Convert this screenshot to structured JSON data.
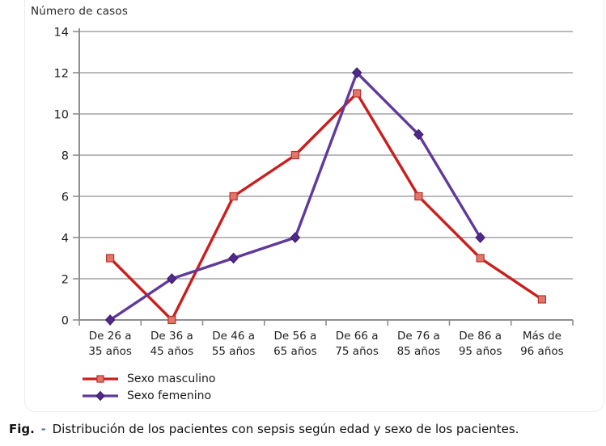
{
  "figure": {
    "caption": {
      "prefix": "Fig.",
      "dash": "-",
      "text": "Distribución de los pacientes con sepsis según edad y sexo de los pacientes.",
      "dash_color": "#5b7ca3"
    }
  },
  "chart_data": {
    "type": "line",
    "title": "Número de casos",
    "ylabel": "Número de casos",
    "categories": [
      "De 26 a\n35 años",
      "De 36 a\n45 años",
      "De 46 a\n55 años",
      "De 56 a\n65 años",
      "De 66 a\n75 años",
      "De 76 a\n85 años",
      "De 86 a\n95 años",
      "Más de\n96 años"
    ],
    "series": [
      {
        "name": "Sexo masculino",
        "values": [
          3,
          0,
          6,
          8,
          11,
          6,
          3,
          1
        ],
        "color": "#cb1d1d",
        "marker": "square",
        "marker_fill": "#e2766b",
        "marker_stroke": "#b93228"
      },
      {
        "name": "Sexo femenino",
        "values": [
          0,
          2,
          3,
          4,
          12,
          9,
          4,
          null
        ],
        "color": "#5f3a9c",
        "marker": "diamond",
        "marker_fill": "#53288c",
        "marker_stroke": "#3e1d6b"
      }
    ],
    "ylim": [
      0,
      14
    ],
    "ytick_step": 2,
    "grid": true,
    "grid_color": "#a3a3a3",
    "axis_color": "#8e8e8e",
    "tick_label_color": "#1f1f1f",
    "legend_position": "bottom-left"
  }
}
